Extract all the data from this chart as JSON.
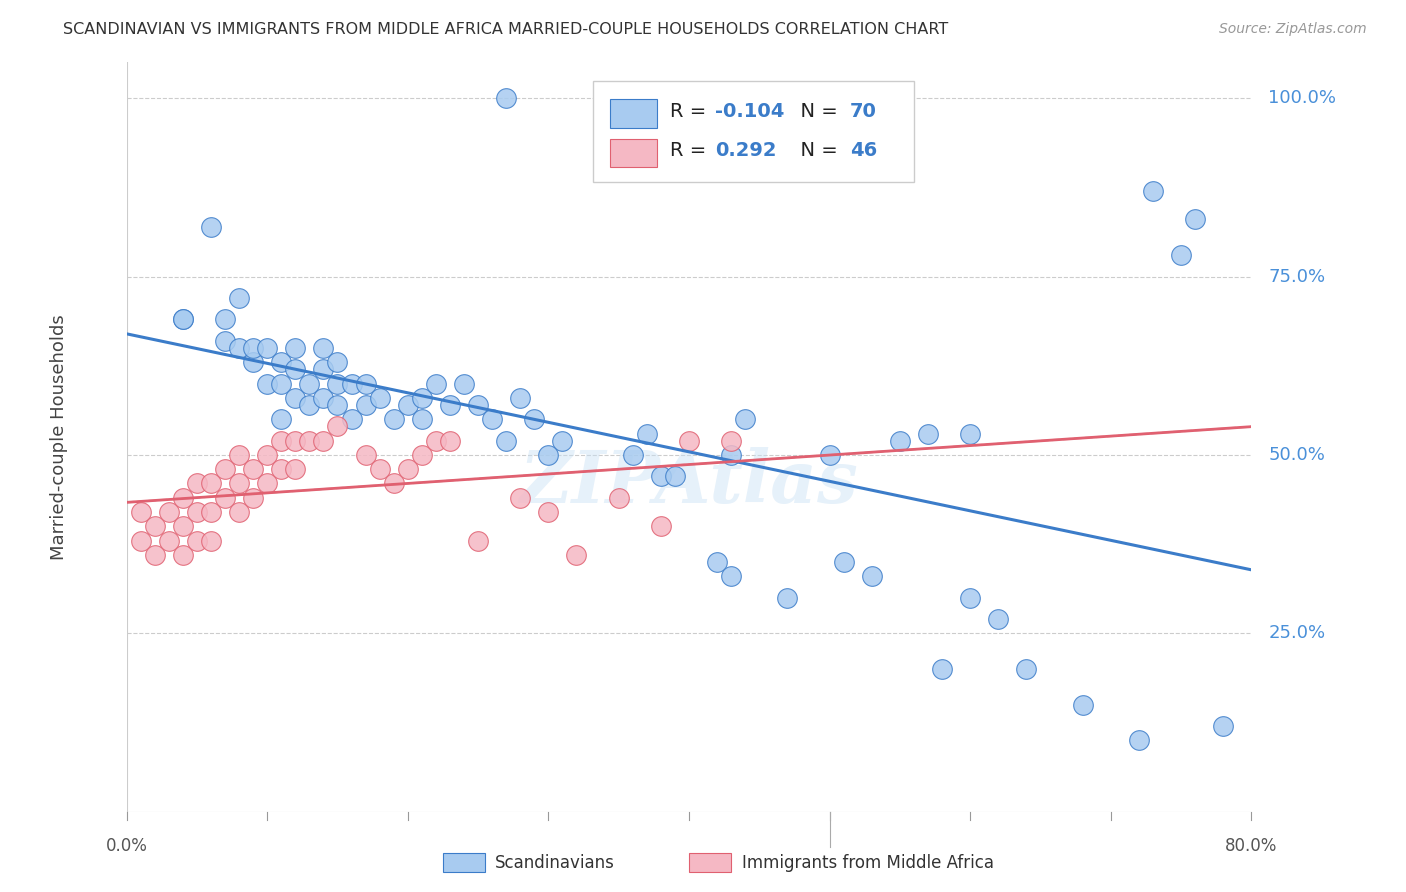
{
  "title": "SCANDINAVIAN VS IMMIGRANTS FROM MIDDLE AFRICA MARRIED-COUPLE HOUSEHOLDS CORRELATION CHART",
  "source": "Source: ZipAtlas.com",
  "ylabel": "Married-couple Households",
  "ytick_labels": [
    "100.0%",
    "75.0%",
    "50.0%",
    "25.0%"
  ],
  "ytick_positions": [
    1.0,
    0.75,
    0.5,
    0.25
  ],
  "xlim": [
    0.0,
    0.8
  ],
  "ylim": [
    0.0,
    1.05
  ],
  "legend_R1": "-0.104",
  "legend_N1": "70",
  "legend_R2": "0.292",
  "legend_N2": "46",
  "color_blue": "#A8CBF0",
  "color_pink": "#F5B8C4",
  "color_blue_line": "#3B7CC9",
  "color_pink_line": "#E06070",
  "color_pink_dash": "#E0A0A8",
  "watermark": "ZIPAtlas",
  "blue_scatter_x": [
    0.27,
    0.04,
    0.04,
    0.06,
    0.07,
    0.07,
    0.08,
    0.08,
    0.09,
    0.09,
    0.1,
    0.1,
    0.11,
    0.11,
    0.11,
    0.12,
    0.12,
    0.12,
    0.13,
    0.13,
    0.14,
    0.14,
    0.14,
    0.15,
    0.15,
    0.15,
    0.16,
    0.16,
    0.17,
    0.17,
    0.18,
    0.19,
    0.2,
    0.21,
    0.21,
    0.22,
    0.23,
    0.24,
    0.25,
    0.26,
    0.27,
    0.28,
    0.29,
    0.31,
    0.36,
    0.37,
    0.38,
    0.39,
    0.43,
    0.44,
    0.47,
    0.5,
    0.51,
    0.53,
    0.57,
    0.58,
    0.6,
    0.62,
    0.64,
    0.68,
    0.72,
    0.73,
    0.75,
    0.76,
    0.78,
    0.6,
    0.55,
    0.42,
    0.43,
    0.3
  ],
  "blue_scatter_y": [
    1.0,
    0.69,
    0.69,
    0.82,
    0.66,
    0.69,
    0.65,
    0.72,
    0.63,
    0.65,
    0.6,
    0.65,
    0.55,
    0.6,
    0.63,
    0.58,
    0.62,
    0.65,
    0.57,
    0.6,
    0.58,
    0.62,
    0.65,
    0.57,
    0.6,
    0.63,
    0.55,
    0.6,
    0.57,
    0.6,
    0.58,
    0.55,
    0.57,
    0.55,
    0.58,
    0.6,
    0.57,
    0.6,
    0.57,
    0.55,
    0.52,
    0.58,
    0.55,
    0.52,
    0.5,
    0.53,
    0.47,
    0.47,
    0.5,
    0.55,
    0.3,
    0.5,
    0.35,
    0.33,
    0.53,
    0.2,
    0.3,
    0.27,
    0.2,
    0.15,
    0.1,
    0.87,
    0.78,
    0.83,
    0.12,
    0.53,
    0.52,
    0.35,
    0.33,
    0.5
  ],
  "pink_scatter_x": [
    0.01,
    0.01,
    0.02,
    0.02,
    0.03,
    0.03,
    0.04,
    0.04,
    0.04,
    0.05,
    0.05,
    0.05,
    0.06,
    0.06,
    0.06,
    0.07,
    0.07,
    0.08,
    0.08,
    0.08,
    0.09,
    0.09,
    0.1,
    0.1,
    0.11,
    0.11,
    0.12,
    0.12,
    0.13,
    0.14,
    0.15,
    0.17,
    0.18,
    0.19,
    0.2,
    0.21,
    0.22,
    0.23,
    0.25,
    0.28,
    0.3,
    0.32,
    0.35,
    0.38,
    0.4,
    0.43
  ],
  "pink_scatter_y": [
    0.42,
    0.38,
    0.4,
    0.36,
    0.42,
    0.38,
    0.44,
    0.4,
    0.36,
    0.46,
    0.42,
    0.38,
    0.46,
    0.42,
    0.38,
    0.48,
    0.44,
    0.5,
    0.46,
    0.42,
    0.48,
    0.44,
    0.5,
    0.46,
    0.52,
    0.48,
    0.52,
    0.48,
    0.52,
    0.52,
    0.54,
    0.5,
    0.48,
    0.46,
    0.48,
    0.5,
    0.52,
    0.52,
    0.38,
    0.44,
    0.42,
    0.36,
    0.44,
    0.4,
    0.52,
    0.52
  ],
  "xtick_positions": [
    0.0,
    0.1,
    0.2,
    0.3,
    0.4,
    0.5,
    0.6,
    0.7,
    0.8
  ]
}
